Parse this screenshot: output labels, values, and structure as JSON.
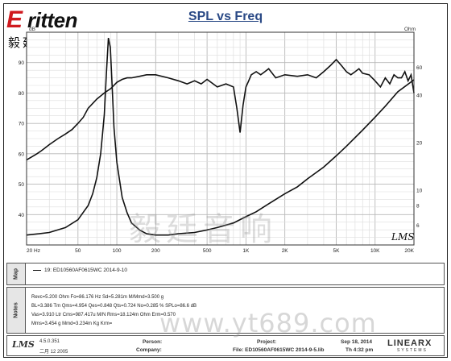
{
  "logo": {
    "brand_e": "E",
    "brand_rest": "ritten",
    "chinese": "毅廷音响"
  },
  "chart_data": {
    "type": "line",
    "title": "SPL vs Freq",
    "x_scale": "log",
    "xlim": [
      20,
      20000
    ],
    "x_ticks": [
      20,
      50,
      100,
      200,
      500,
      1000,
      2000,
      5000,
      10000,
      20000
    ],
    "x_tick_labels": [
      "20 Hz",
      "50",
      "100",
      "200",
      "500",
      "1K",
      "2K",
      "5K",
      "10K",
      "20K"
    ],
    "y_left_label": "dB",
    "y_left_range": [
      30,
      100
    ],
    "y_left_ticks": [
      40,
      50,
      60,
      70,
      80,
      90
    ],
    "y_right_label": "Ohm",
    "y_right_scale": "log",
    "y_right_range": [
      4.5,
      100
    ],
    "y_right_ticks": [
      6,
      8,
      10,
      20,
      40,
      60
    ],
    "y_right_tick_labels": [
      "6",
      "8",
      "10",
      "20",
      "40",
      "60"
    ],
    "grid": true,
    "series": [
      {
        "name": "SPL",
        "axis": "left",
        "color": "#111111",
        "x": [
          20,
          22,
          24,
          26,
          28,
          30,
          35,
          40,
          45,
          50,
          55,
          60,
          70,
          80,
          90,
          100,
          110,
          120,
          130,
          150,
          170,
          200,
          250,
          300,
          350,
          400,
          450,
          500,
          600,
          700,
          800,
          850,
          900,
          950,
          1000,
          1050,
          1100,
          1200,
          1300,
          1400,
          1500,
          1700,
          2000,
          2500,
          3000,
          3500,
          4000,
          4500,
          5000,
          5500,
          6000,
          6500,
          7000,
          7500,
          8000,
          9000,
          10000,
          11000,
          12000,
          13000,
          14000,
          15000,
          16000,
          17000,
          18000,
          19000,
          20000
        ],
        "values": [
          58,
          59,
          60,
          61,
          62,
          63,
          65,
          66.5,
          68,
          70,
          72,
          75,
          78,
          80,
          81.5,
          83.5,
          84.5,
          85,
          85,
          85.5,
          86,
          86,
          85,
          84,
          83,
          84,
          83,
          84.5,
          82,
          83,
          82,
          75,
          67,
          76,
          82,
          84,
          86,
          87,
          86,
          87,
          88,
          85,
          86,
          85.5,
          86,
          85,
          87,
          89,
          91,
          89,
          87,
          86,
          87,
          88,
          86.5,
          86,
          84,
          82,
          85,
          83,
          86,
          85,
          85,
          87,
          84,
          86,
          80
        ]
      },
      {
        "name": "Impedance",
        "axis": "right",
        "color": "#111111",
        "x": [
          20,
          25,
          30,
          40,
          50,
          60,
          65,
          70,
          75,
          80,
          83,
          86,
          89,
          92,
          95,
          100,
          110,
          120,
          130,
          150,
          170,
          200,
          250,
          300,
          400,
          500,
          600,
          800,
          1000,
          1200,
          1500,
          2000,
          2500,
          3000,
          4000,
          5000,
          6000,
          8000,
          10000,
          12000,
          15000,
          20000
        ],
        "values": [
          5.2,
          5.3,
          5.4,
          5.8,
          6.5,
          8.0,
          9.5,
          12.0,
          17.0,
          30.0,
          55.0,
          92.0,
          80.0,
          45.0,
          25.0,
          15.0,
          9.0,
          7.2,
          6.2,
          5.6,
          5.3,
          5.2,
          5.2,
          5.3,
          5.4,
          5.6,
          5.8,
          6.2,
          6.8,
          7.3,
          8.2,
          9.5,
          10.5,
          11.8,
          14.0,
          16.5,
          19.0,
          24.0,
          29.0,
          34.0,
          42.0,
          50.0
        ]
      }
    ]
  },
  "map": {
    "label": "Map",
    "entry": "19: ED10560AF0615WC   2014-9-10"
  },
  "notes": {
    "label": "Notes",
    "lines": [
      "Revc=5.200 Ohm  Fo=86.176 Hz  Sd=5.281m M/Mmd=3.500 g",
      "BL=3.386 Tm  Qms=4.954  Qes=0.848  Qts=0.724  No=0.285 %  SPLo=86.6 dB",
      "Vas=3.910 Ltr  Cms=987.417u M/N  Rms=18.124m Ohm  Erm=0.570",
      "Mms=3.454 g  Mmd=3.234m Kg  Krm="
    ]
  },
  "watermark": {
    "chinese": "毅廷音响",
    "url": "www.yt689.com"
  },
  "plot_mark": "LMS",
  "footer": {
    "lms": "LMS",
    "version": "4.5.0.351",
    "date": "二月 12 2005",
    "person_label": "Person:",
    "company_label": "Company:",
    "project_label": "Project:",
    "file_label": "File: ED10560AF0615WC   2014-9-5.lib",
    "run_date": "Sep 18, 2014",
    "run_time": "Th  4:32 pm",
    "brand": "LINEARX",
    "brand_sub": "SYSTEMS"
  }
}
